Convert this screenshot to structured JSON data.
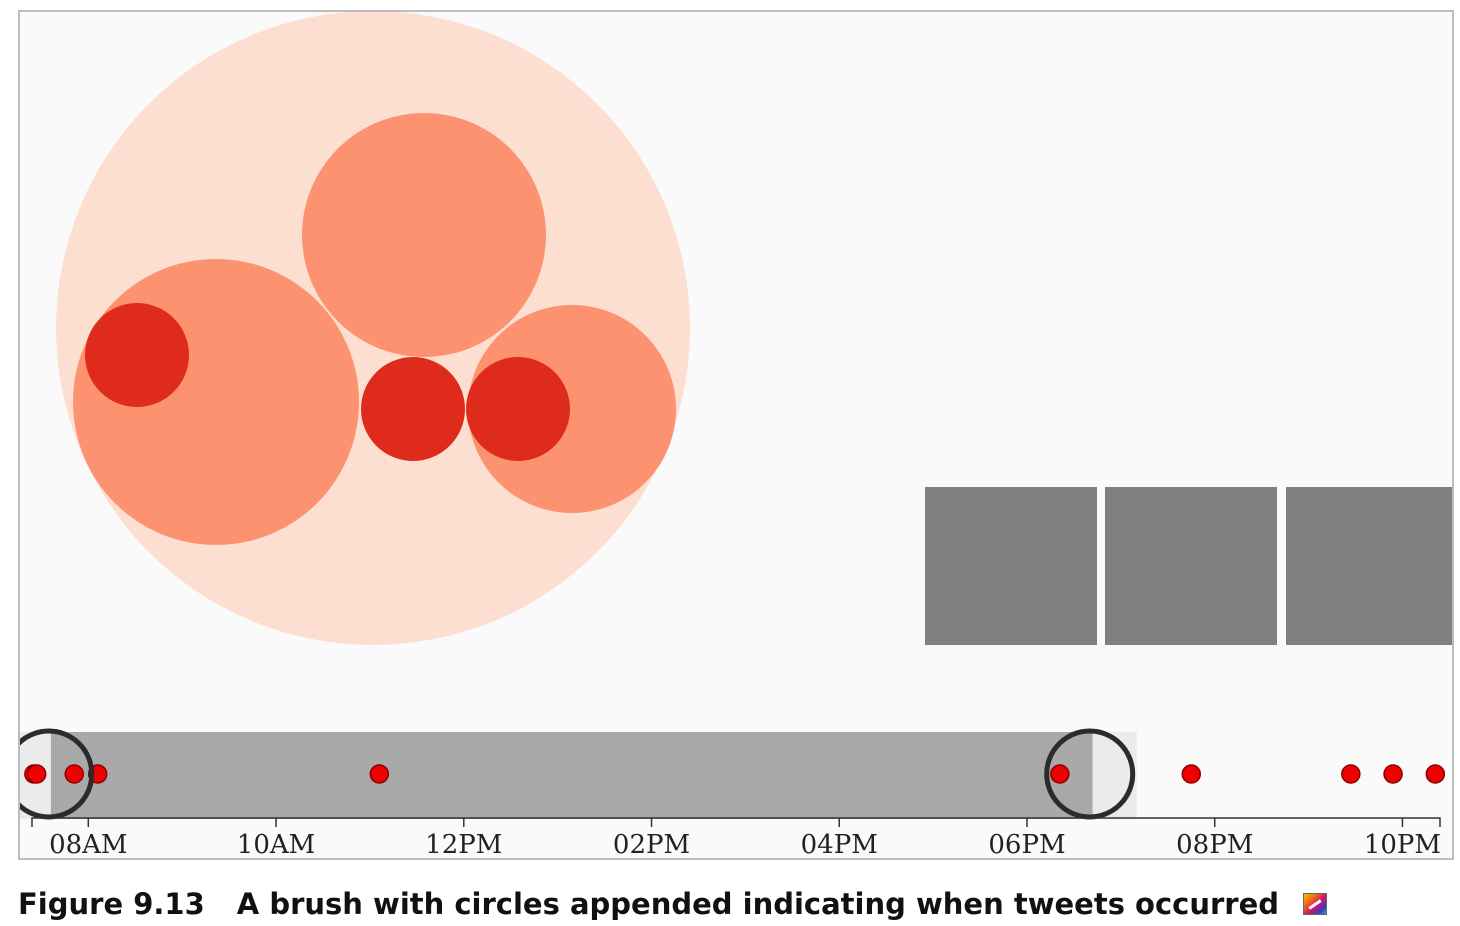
{
  "figure": {
    "number": "Figure 9.13",
    "caption": "A brush with circles appended indicating when tweets occurred",
    "caption_icon": "color-figure-icon"
  },
  "colors": {
    "pack_root": "#fddfd2",
    "pack_group": "#fc9270",
    "pack_leaf": "#de2b1b",
    "bars": "#808080",
    "brush_extent": "#a9a9a9",
    "brush_handle": "#ebebeb",
    "handle_stroke": "#2b2b2b",
    "tweet_dot": "#ee0000"
  },
  "timeline": {
    "ticks": [
      "08AM",
      "10AM",
      "12PM",
      "02PM",
      "04PM",
      "06PM",
      "08PM",
      "10PM"
    ],
    "tick_hours": [
      8,
      10,
      12,
      14,
      16,
      18,
      20,
      22
    ],
    "domain_hours": [
      7.4,
      22.4
    ],
    "brush_hours": [
      7.6,
      18.7
    ],
    "tweet_hours": [
      7.42,
      7.45,
      7.85,
      8.1,
      11.1,
      18.35,
      19.75,
      21.45,
      21.9,
      22.35
    ]
  }
}
